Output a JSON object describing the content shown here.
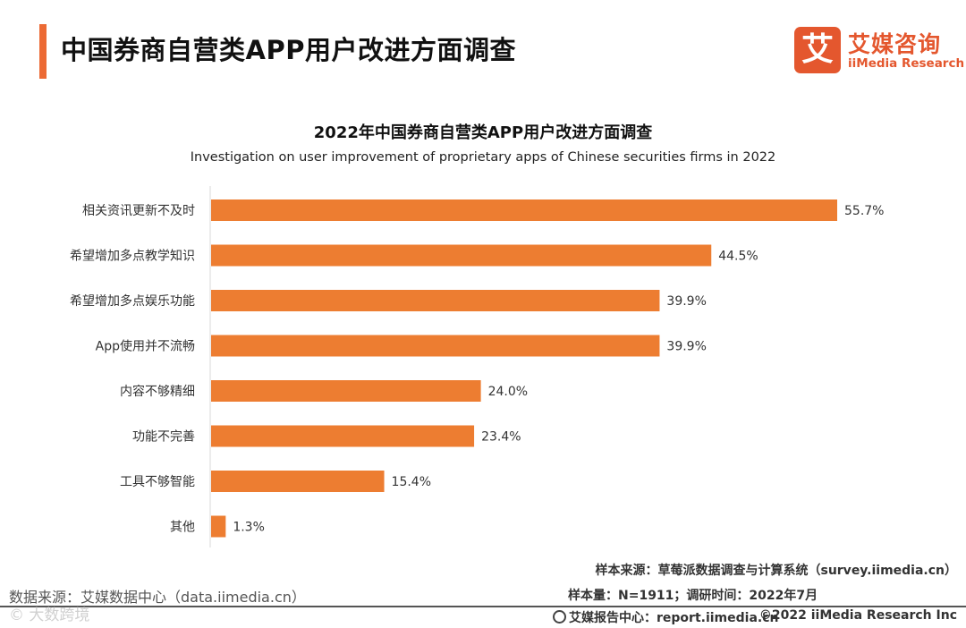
{
  "header": {
    "title": "中国券商自营类APP用户改进方面调查"
  },
  "logo": {
    "mark": "艾",
    "name_cn": "艾媒咨询",
    "name_en": "iiMedia Research"
  },
  "colors": {
    "accent": "#ec6a34",
    "bar": "#ed7d31",
    "brand": "#e4572e"
  },
  "chart_data": {
    "type": "bar",
    "orientation": "horizontal",
    "title": "2022年中国券商自营类APP用户改进方面调查",
    "subtitle": "Investigation on user improvement of proprietary apps of Chinese securities firms in 2022",
    "unit": "%",
    "categories": [
      "相关资讯更新不及时",
      "希望增加多点教学知识",
      "希望增加多点娱乐功能",
      "App使用并不流畅",
      "内容不够精细",
      "功能不完善",
      "工具不够智能",
      "其他"
    ],
    "values": [
      55.7,
      44.5,
      39.9,
      39.9,
      24.0,
      23.4,
      15.4,
      1.3
    ],
    "value_labels": [
      "55.7%",
      "44.5%",
      "39.9%",
      "39.9%",
      "24.0%",
      "23.4%",
      "15.4%",
      "1.3%"
    ],
    "xlim": [
      0,
      60
    ],
    "grid": false,
    "legend": "none"
  },
  "footer": {
    "sample_source": "样本来源：草莓派数据调查与计算系统（survey.iimedia.cn）",
    "sample_size": "样本量：N=1911；调研时间：2022年7月",
    "data_source": "数据来源：艾媒数据中心（data.iimedia.cn）",
    "watermark": "© 大数跨境",
    "report_center": "艾媒报告中心：report.iimedia.cn",
    "copyright": "©2022  iiMedia Research  Inc"
  }
}
